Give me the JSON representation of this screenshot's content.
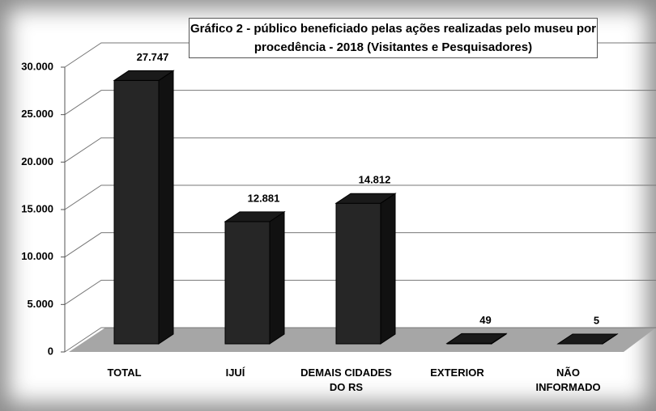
{
  "chart_data": {
    "type": "bar3d",
    "title": "Gráfico 2 - público beneficiado pelas ações realizadas pelo museu por procedência - 2018 (Visitantes e Pesquisadores)",
    "categories": [
      "TOTAL",
      "IJUÍ",
      "DEMAIS CIDADES DO RS",
      "EXTERIOR",
      "NÃO INFORMADO"
    ],
    "values": [
      27747,
      12881,
      14812,
      49,
      5
    ],
    "value_labels": [
      "27.747",
      "12.881",
      "14.812",
      "49",
      "5"
    ],
    "color": "#262626",
    "ylim": [
      0,
      30000
    ],
    "yticks": [
      0,
      {
        "value": 5000,
        "label": "5.000"
      },
      {
        "value": 10000,
        "label": "10.000"
      },
      {
        "value": 15000,
        "label": "15.000"
      },
      {
        "value": 20000,
        "label": "20.000"
      },
      {
        "value": 25000,
        "label": "25.000"
      },
      {
        "value": 30000,
        "label": "30.000"
      }
    ],
    "grid": true
  }
}
